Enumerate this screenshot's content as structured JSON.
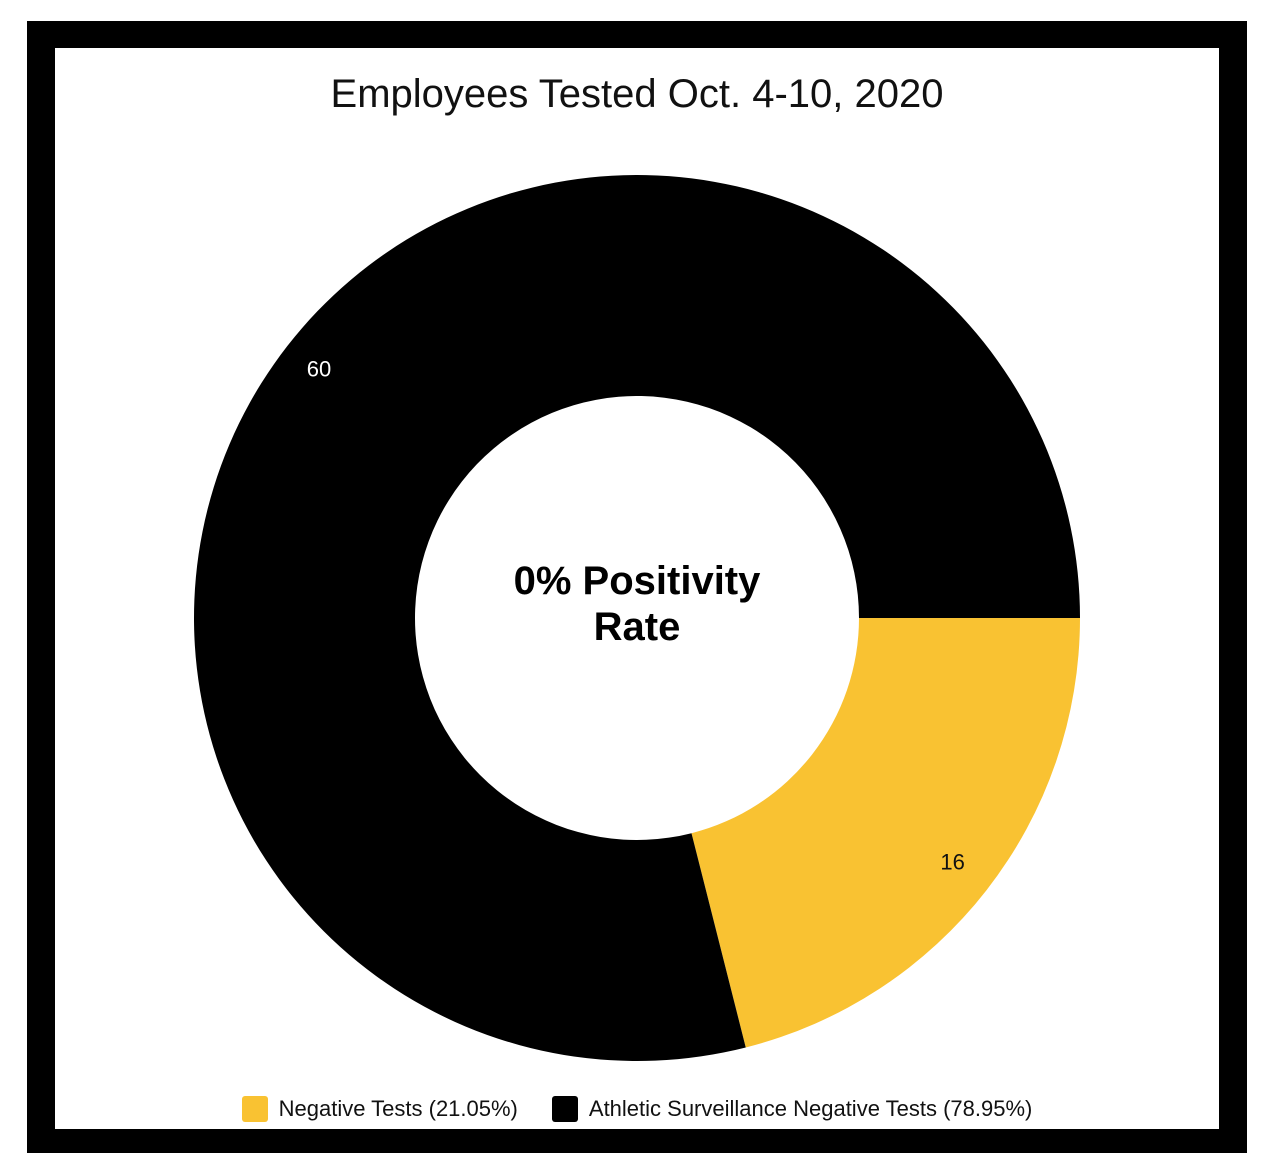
{
  "chart_data": {
    "type": "pie",
    "title": "Employees Tested Oct. 4-10, 2020",
    "center_text": [
      "0% Positivity",
      "Rate"
    ],
    "categories": [
      "Negative Tests (21.05%)",
      "Athletic Surveillance Negative Tests (78.95%)"
    ],
    "values": [
      16,
      60
    ],
    "colors": [
      "#F9C232",
      "#000000"
    ],
    "data_labels": [
      "16",
      "60"
    ],
    "label_colors": [
      "#111111",
      "#ffffff"
    ],
    "legend_position": "bottom"
  }
}
